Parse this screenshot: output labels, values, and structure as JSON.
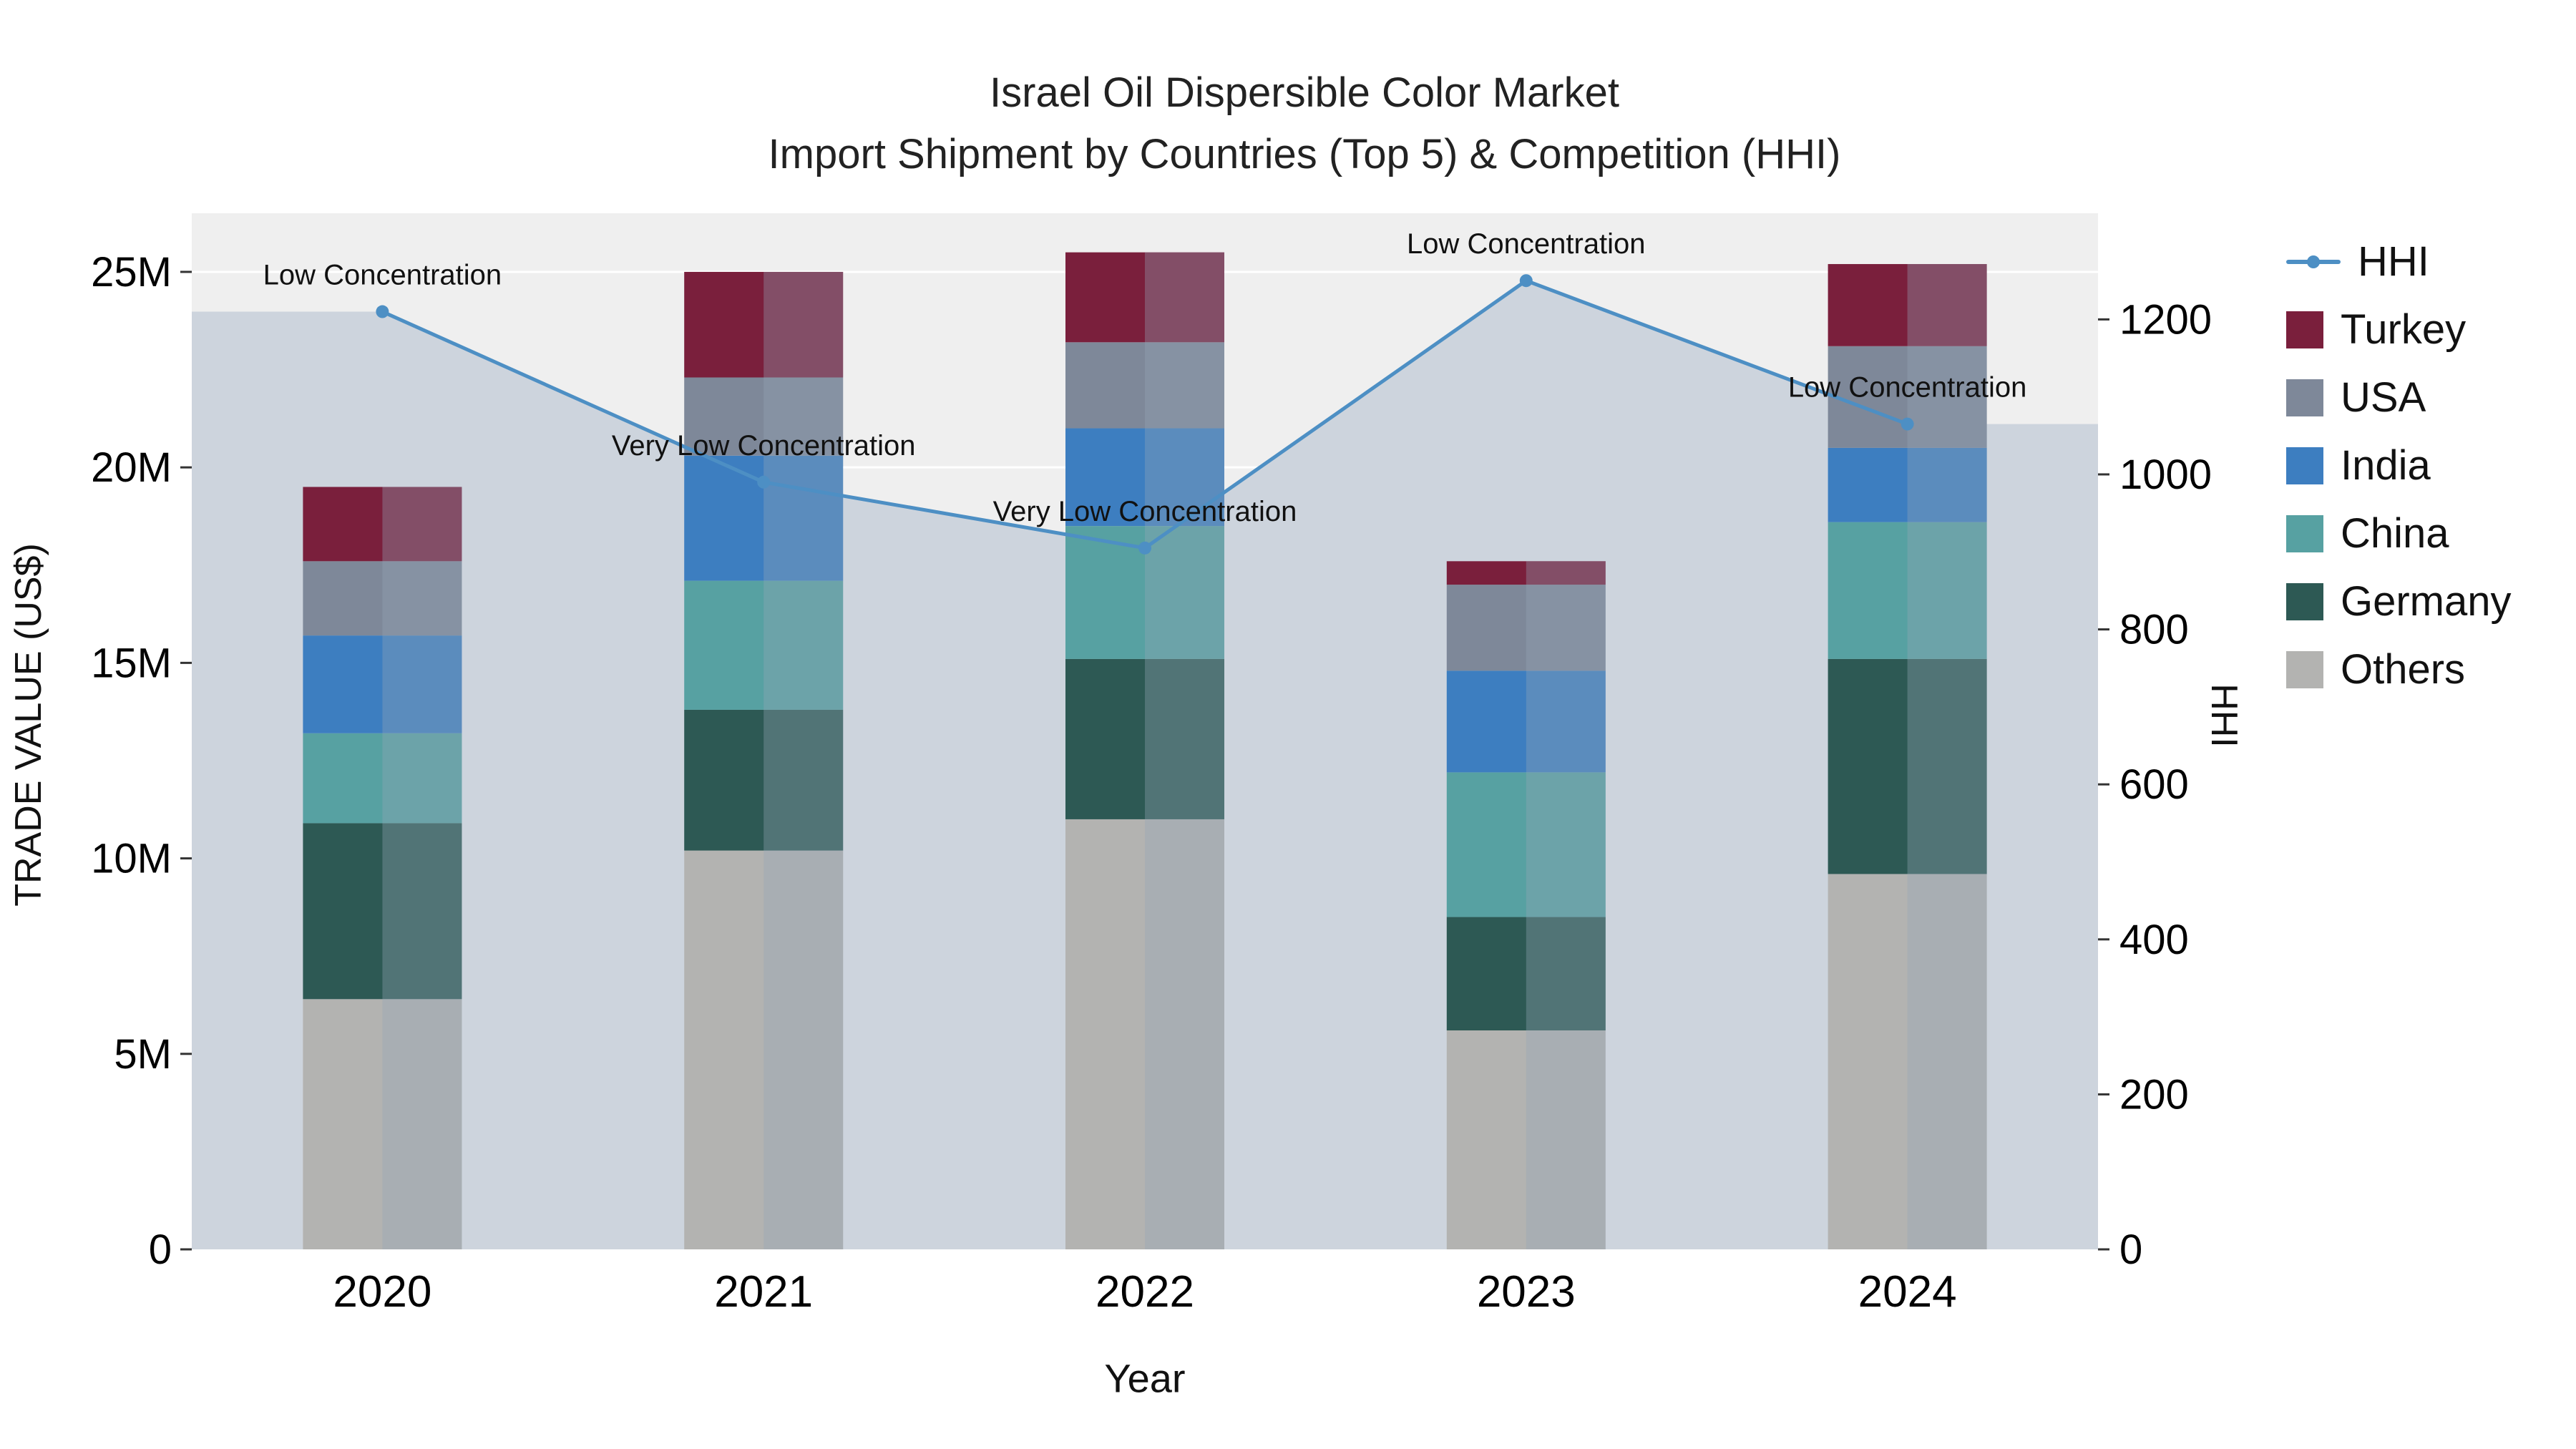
{
  "title": {
    "line1": "Israel Oil Dispersible Color Market",
    "line2": "Import Shipment by Countries (Top 5) & Competition (HHI)"
  },
  "axes": {
    "y_left_label": "TRADE VALUE (US$)",
    "y_right_label": "HHI",
    "x_label": "Year",
    "y_left_ticks": [
      "0",
      "5M",
      "10M",
      "15M",
      "20M",
      "25M"
    ],
    "y_right_ticks": [
      "0",
      "200",
      "400",
      "600",
      "800",
      "1000",
      "1200"
    ]
  },
  "legend": {
    "items": [
      {
        "label": "HHI",
        "type": "line",
        "color": "#4d8fc4"
      },
      {
        "label": "Turkey",
        "type": "square",
        "color": "#7a1f3c"
      },
      {
        "label": "USA",
        "type": "square",
        "color": "#7e8899"
      },
      {
        "label": "India",
        "type": "square",
        "color": "#3d7ec0"
      },
      {
        "label": "China",
        "type": "square",
        "color": "#57a1a2"
      },
      {
        "label": "Germany",
        "type": "square",
        "color": "#2d5954"
      },
      {
        "label": "Others",
        "type": "square",
        "color": "#b3b3b1"
      }
    ]
  },
  "chart_data": {
    "type": "bar",
    "subtype": "stacked-bar-with-line",
    "title": "Israel Oil Dispersible Color Market — Import Shipment by Countries (Top 5) & Competition (HHI)",
    "xlabel": "Year",
    "ylabel_left": "TRADE VALUE (US$)",
    "ylabel_right": "HHI",
    "categories": [
      "2020",
      "2021",
      "2022",
      "2023",
      "2024"
    ],
    "bar_value_unit": "million US$",
    "series": [
      {
        "name": "Turkey",
        "color": "#7a1f3c",
        "values_m": [
          1.9,
          2.7,
          2.3,
          0.6,
          2.1
        ]
      },
      {
        "name": "USA",
        "color": "#7e8899",
        "values_m": [
          1.9,
          2.0,
          2.2,
          2.2,
          2.6
        ]
      },
      {
        "name": "India",
        "color": "#3d7ec0",
        "values_m": [
          2.5,
          3.2,
          2.5,
          2.6,
          1.9
        ]
      },
      {
        "name": "China",
        "color": "#57a1a2",
        "values_m": [
          2.3,
          3.3,
          3.4,
          3.7,
          3.5
        ]
      },
      {
        "name": "Germany",
        "color": "#2d5954",
        "values_m": [
          4.5,
          3.6,
          4.1,
          2.9,
          5.5
        ]
      },
      {
        "name": "Others",
        "color": "#b3b3b1",
        "values_m": [
          6.4,
          10.2,
          11.0,
          5.6,
          9.6
        ]
      }
    ],
    "totals_m": [
      19.5,
      25.0,
      25.5,
      17.6,
      25.2
    ],
    "hhi": {
      "values": [
        1210,
        990,
        905,
        1250,
        1065
      ],
      "labels": [
        "Low Concentration",
        "Very Low Concentration",
        "Very Low Concentration",
        "Low Concentration",
        "Low Concentration"
      ],
      "color": "#4d8fc4",
      "area_color": "#cdd4dd"
    },
    "plot_bg": "#efefef",
    "grid_color": "#ffffff",
    "ylim_left_m": [
      0,
      26.5
    ],
    "ylim_right": [
      0,
      1337
    ],
    "left_ticks_m": [
      0,
      5,
      10,
      15,
      20,
      25
    ],
    "right_ticks": [
      0,
      200,
      400,
      600,
      800,
      1000,
      1200
    ],
    "legend_position": "right",
    "grid": true
  }
}
